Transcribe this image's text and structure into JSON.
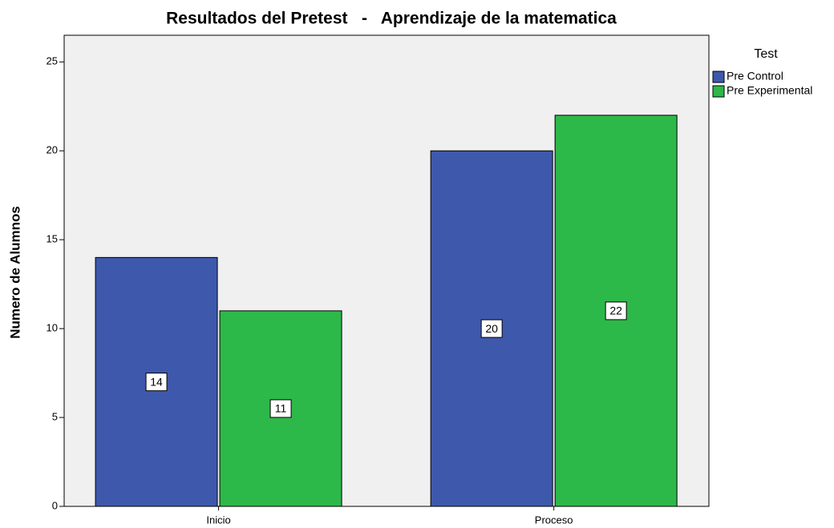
{
  "chart_data": {
    "type": "bar",
    "title": "Resultados del Pretest   -   Aprendizaje de la matematica",
    "y_label": "Numero de Alumnos",
    "categories": [
      "Inicio",
      "Proceso"
    ],
    "legend_title": "Test",
    "series": [
      {
        "name": "Pre Control",
        "color": "#3e58ac",
        "values": [
          14,
          20
        ]
      },
      {
        "name": "Pre Experimental",
        "color": "#2db84a",
        "values": [
          11,
          22
        ]
      }
    ],
    "ylim": [
      0,
      26.5
    ],
    "yticks": [
      0,
      5,
      10,
      15,
      20,
      25
    ],
    "legend": "right"
  }
}
